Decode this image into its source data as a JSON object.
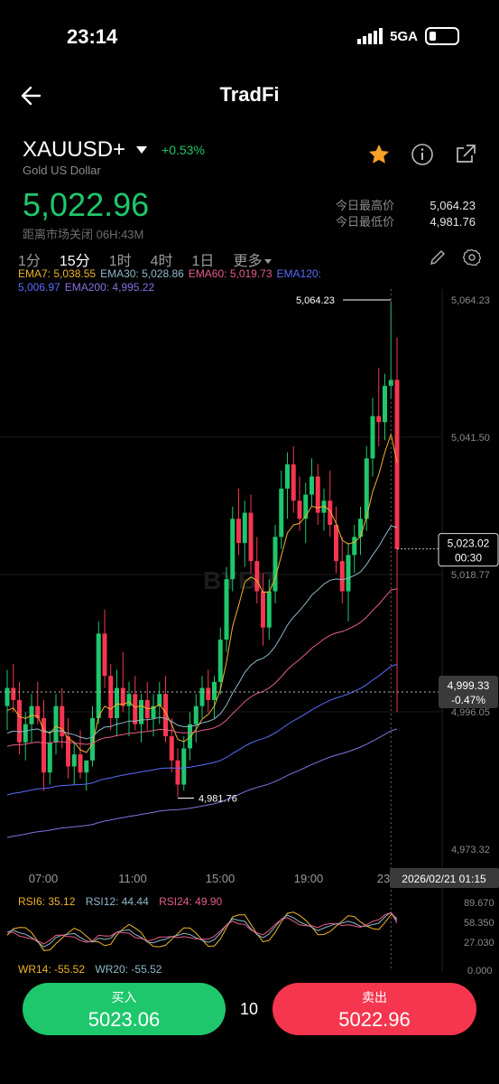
{
  "status": {
    "time": "23:14",
    "network": "5GA"
  },
  "nav": {
    "title": "TradFi"
  },
  "instrument": {
    "symbol": "XAUUSD+",
    "change": "+0.53%",
    "name": "Gold US Dollar",
    "price": "5,022.96",
    "market_close": "距离市场关闭 06H:43M",
    "high_label": "今日最高价",
    "high": "5,064.23",
    "low_label": "今日最低价",
    "low": "4,981.76"
  },
  "timeframes": [
    "1分",
    "15分",
    "1时",
    "4时",
    "1日",
    "更多"
  ],
  "active_timeframe": "15分",
  "ema_legend": [
    {
      "text": "EMA7: 5,038.55",
      "color": "#f0b429"
    },
    {
      "text": "EMA30: 5,028.86",
      "color": "#8fb8c8"
    },
    {
      "text": "EMA60: 5,019.73",
      "color": "#e85d8a"
    },
    {
      "text": "EMA120:",
      "color": "#5b6cff"
    },
    {
      "text": "5,006.97",
      "color": "#5b6cff"
    },
    {
      "text": "EMA200: 4,995.22",
      "color": "#8b6fe0"
    }
  ],
  "chart_data": {
    "type": "candlestick",
    "y_ticks": [
      "5,064.23",
      "5,041.50",
      "5,018.77",
      "4,996.05",
      "4,973.32"
    ],
    "x_ticks": [
      "07:00",
      "11:00",
      "15:00",
      "19:00",
      "23"
    ],
    "high_marker": "5,064.23",
    "low_marker": "4,981.76",
    "current_price_tag": "5,023.02",
    "countdown": "00:30",
    "crosshair_price": "4,999.33",
    "crosshair_pct": "-0.47%",
    "crosshair_time": "2026/02/21 01:15",
    "watermark": "BYBIT",
    "candles": [
      [
        4997,
        5003,
        4993,
        5000
      ],
      [
        5000,
        5004,
        4996,
        4998
      ],
      [
        4998,
        5001,
        4989,
        4991
      ],
      [
        4991,
        4996,
        4988,
        4994
      ],
      [
        4994,
        4999,
        4991,
        4997
      ],
      [
        4997,
        5001,
        4994,
        4995
      ],
      [
        4995,
        4998,
        4983,
        4986
      ],
      [
        4986,
        4993,
        4984,
        4991
      ],
      [
        4991,
        4999,
        4989,
        4997
      ],
      [
        4997,
        5000,
        4990,
        4992
      ],
      [
        4992,
        4995,
        4985,
        4987
      ],
      [
        4987,
        4991,
        4984,
        4989
      ],
      [
        4989,
        4993,
        4985,
        4986
      ],
      [
        4986,
        4988,
        4983,
        4988
      ],
      [
        4988,
        4997,
        4987,
        4995
      ],
      [
        4995,
        5011,
        4994,
        5009
      ],
      [
        5009,
        5013,
        5000,
        5002
      ],
      [
        5002,
        5004,
        4993,
        4995
      ],
      [
        4995,
        5003,
        4992,
        5000
      ],
      [
        5000,
        5006,
        4996,
        4997
      ],
      [
        4997,
        5001,
        4992,
        4999
      ],
      [
        4999,
        5002,
        4993,
        4994
      ],
      [
        4994,
        4999,
        4991,
        4998
      ],
      [
        4998,
        5001,
        4993,
        4995
      ],
      [
        4995,
        4999,
        4992,
        4997
      ],
      [
        4997,
        5001,
        4994,
        4999
      ],
      [
        4999,
        5002,
        4991,
        4992
      ],
      [
        4992,
        4995,
        4986,
        4988
      ],
      [
        4988,
        4990,
        4982,
        4984
      ],
      [
        4984,
        4992,
        4983,
        4990
      ],
      [
        4990,
        4996,
        4988,
        4994
      ],
      [
        4994,
        4999,
        4991,
        4997
      ],
      [
        4997,
        5002,
        4995,
        5000
      ],
      [
        5000,
        5003,
        4996,
        4998
      ],
      [
        4998,
        5002,
        4995,
        5001
      ],
      [
        5001,
        5010,
        4999,
        5008
      ],
      [
        5008,
        5020,
        5006,
        5018
      ],
      [
        5018,
        5030,
        5016,
        5028
      ],
      [
        5028,
        5033,
        5022,
        5024
      ],
      [
        5024,
        5031,
        5020,
        5029
      ],
      [
        5029,
        5032,
        5019,
        5021
      ],
      [
        5021,
        5025,
        5014,
        5016
      ],
      [
        5016,
        5019,
        5007,
        5010
      ],
      [
        5010,
        5018,
        5008,
        5016
      ],
      [
        5016,
        5027,
        5014,
        5025
      ],
      [
        5025,
        5036,
        5023,
        5033
      ],
      [
        5033,
        5039,
        5028,
        5037
      ],
      [
        5037,
        5040,
        5029,
        5031
      ],
      [
        5031,
        5035,
        5026,
        5028
      ],
      [
        5028,
        5034,
        5024,
        5032
      ],
      [
        5032,
        5038,
        5030,
        5035
      ],
      [
        5035,
        5037,
        5027,
        5029
      ],
      [
        5029,
        5033,
        5026,
        5031
      ],
      [
        5031,
        5036,
        5025,
        5027
      ],
      [
        5027,
        5030,
        5019,
        5021
      ],
      [
        5021,
        5025,
        5014,
        5016
      ],
      [
        5016,
        5024,
        5011,
        5022
      ],
      [
        5022,
        5027,
        5019,
        5025
      ],
      [
        5025,
        5030,
        5022,
        5028
      ],
      [
        5028,
        5040,
        5026,
        5038
      ],
      [
        5038,
        5048,
        5035,
        5045
      ],
      [
        5045,
        5053,
        5040,
        5044
      ],
      [
        5044,
        5052,
        5041,
        5050
      ],
      [
        5050,
        5064,
        5048,
        5051
      ],
      [
        5051,
        5058,
        4996,
        5023
      ]
    ],
    "rsi_legend": [
      "RSI6: 35.12",
      "RSI12: 44.44",
      "RSI24: 49.90"
    ],
    "rsi_ticks": [
      "89.670",
      "58.350",
      "27.030"
    ],
    "wr_legend": [
      "WR14: -55.52",
      "WR20: -55.52"
    ],
    "wr_tick": "0.000"
  },
  "trade": {
    "buy_label": "买入",
    "buy_price": "5023.06",
    "qty": "10",
    "sell_label": "卖出",
    "sell_price": "5022.96"
  },
  "colors": {
    "up": "#1ec76c",
    "down": "#f5364e"
  }
}
